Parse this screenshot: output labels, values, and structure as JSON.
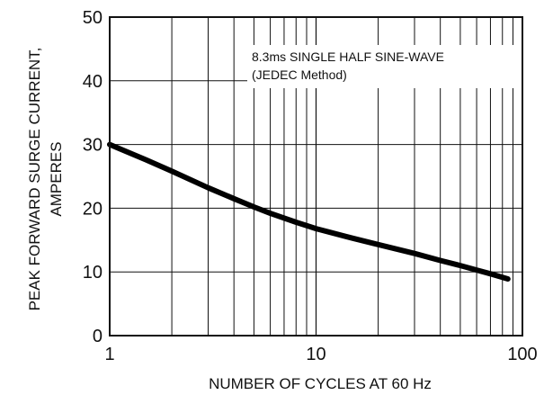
{
  "chart_data": {
    "type": "line",
    "x_scale": "log",
    "xlim": [
      1,
      100
    ],
    "ylim": [
      0,
      50
    ],
    "grid": true,
    "xlabel": "NUMBER OF CYCLES AT 60 Hz",
    "ylabel_lines": [
      "PEAK FORWARD SURGE CURRENT,",
      "AMPERES"
    ],
    "x_ticks": [
      1,
      10,
      100
    ],
    "x_tick_labels": [
      "1",
      "10",
      "100"
    ],
    "y_ticks": [
      0,
      10,
      20,
      30,
      40,
      50
    ],
    "y_tick_labels": [
      "0",
      "10",
      "20",
      "30",
      "40",
      "50"
    ],
    "annotation_lines": [
      "8.3ms SINGLE HALF SINE-WAVE",
      "(JEDEC Method)"
    ],
    "series": [
      {
        "x": [
          1,
          1.5,
          2,
          3,
          4,
          5,
          6,
          8,
          10,
          15,
          20,
          30,
          40,
          50,
          60,
          70,
          85
        ],
        "y": [
          30,
          27.6,
          25.8,
          23.2,
          21.5,
          20.2,
          19.2,
          17.8,
          16.8,
          15.3,
          14.3,
          12.9,
          11.8,
          11,
          10.3,
          9.7,
          8.9
        ]
      }
    ]
  }
}
